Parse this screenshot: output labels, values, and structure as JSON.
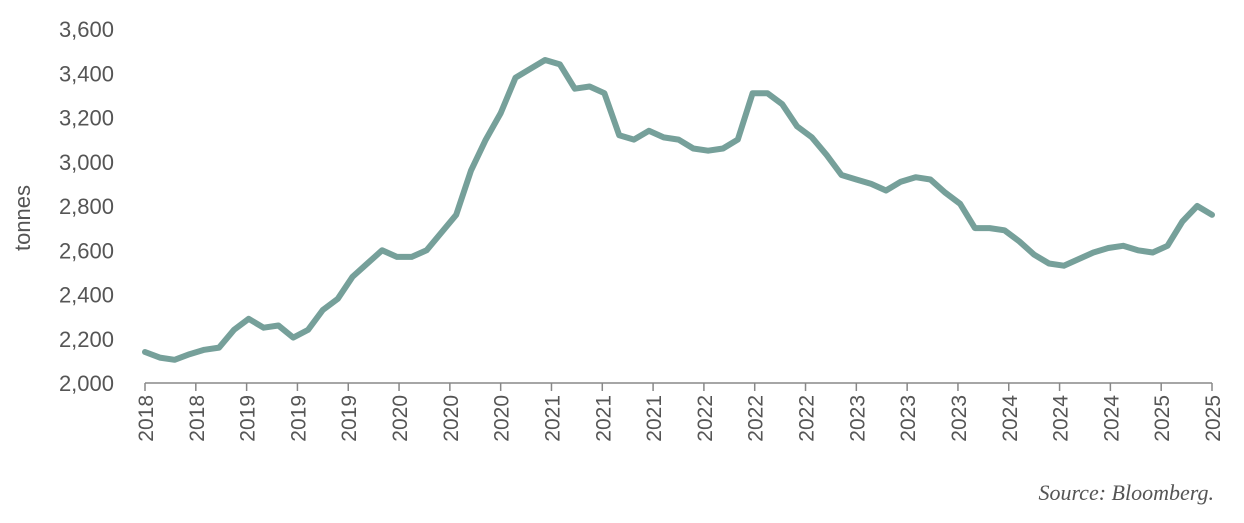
{
  "chart_data": {
    "type": "line",
    "title": "",
    "ylabel": "tonnes",
    "xlabel": "",
    "ylim": [
      2000,
      3600
    ],
    "yticks": [
      "2,000",
      "2,200",
      "2,400",
      "2,600",
      "2,800",
      "3,000",
      "3,200",
      "3,400",
      "3,600"
    ],
    "xticks": [
      "2018",
      "2018",
      "2019",
      "2019",
      "2019",
      "2020",
      "2020",
      "2020",
      "2021",
      "2021",
      "2021",
      "2022",
      "2022",
      "2022",
      "2023",
      "2023",
      "2023",
      "2024",
      "2024",
      "2024",
      "2025",
      "2025"
    ],
    "line_color": "#76a09a",
    "axis_color": "#888888",
    "series": [
      {
        "x": [
          2018.0,
          2018.1,
          2018.2,
          2018.3,
          2018.4,
          2018.5,
          2018.6,
          2018.7,
          2018.8,
          2018.9,
          2019.0,
          2019.1,
          2019.2,
          2019.3,
          2019.4,
          2019.5,
          2019.6,
          2019.7,
          2019.8,
          2019.9,
          2020.0,
          2020.1,
          2020.2,
          2020.3,
          2020.4,
          2020.5,
          2020.6,
          2020.7,
          2020.8,
          2020.9,
          2021.0,
          2021.1,
          2021.2,
          2021.3,
          2021.4,
          2021.5,
          2021.6,
          2021.7,
          2021.8,
          2021.9,
          2022.0,
          2022.1,
          2022.2,
          2022.3,
          2022.4,
          2022.5,
          2022.6,
          2022.7,
          2022.8,
          2022.9,
          2023.0,
          2023.1,
          2023.2,
          2023.3,
          2023.4,
          2023.5,
          2023.6,
          2023.7,
          2023.8,
          2023.9,
          2024.0,
          2024.1,
          2024.2,
          2024.3,
          2024.4,
          2024.5,
          2024.6,
          2024.7,
          2024.8,
          2024.9,
          2025.0,
          2025.1,
          2025.2
        ],
        "y": [
          2140,
          2115,
          2105,
          2130,
          2150,
          2160,
          2240,
          2290,
          2250,
          2260,
          2205,
          2240,
          2330,
          2380,
          2480,
          2540,
          2600,
          2570,
          2570,
          2600,
          2680,
          2760,
          2960,
          3100,
          3220,
          3380,
          3420,
          3460,
          3440,
          3330,
          3340,
          3310,
          3120,
          3100,
          3140,
          3110,
          3100,
          3060,
          3050,
          3060,
          3100,
          3310,
          3310,
          3260,
          3160,
          3110,
          3030,
          2940,
          2920,
          2900,
          2870,
          2910,
          2930,
          2920,
          2860,
          2810,
          2700,
          2700,
          2690,
          2640,
          2580,
          2540,
          2530,
          2560,
          2590,
          2610,
          2620,
          2600,
          2590,
          2620,
          2730,
          2800,
          2760
        ]
      }
    ],
    "source": "Source: Bloomberg."
  }
}
